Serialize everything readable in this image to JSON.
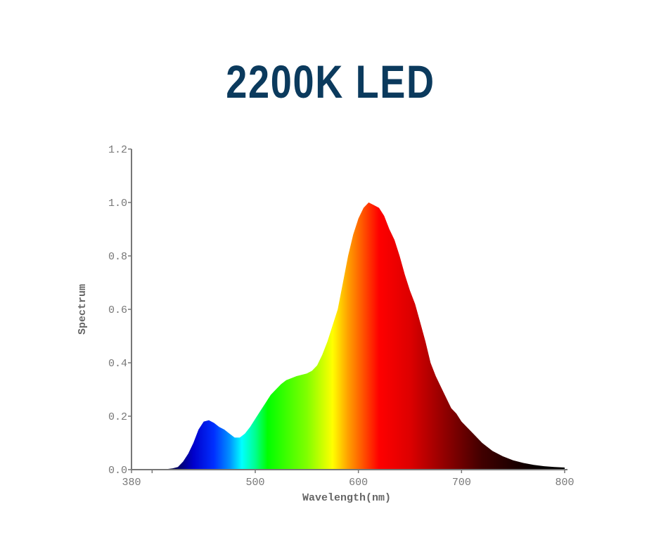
{
  "chart_data": {
    "type": "area",
    "title": "2200K LED",
    "xlabel": "Wavelength(nm)",
    "ylabel": "Spectrum",
    "xlim": [
      380,
      800
    ],
    "ylim": [
      0,
      1.2
    ],
    "x_ticks": [
      380,
      500,
      600,
      700,
      800
    ],
    "x_minor_ticks": [
      400
    ],
    "y_ticks": [
      "0.0",
      "0.2",
      "0.4",
      "0.6",
      "0.8",
      "1.0",
      "1.2"
    ],
    "grid": false,
    "fill": "visible-spectrum gradient",
    "x": [
      380,
      410,
      420,
      425,
      430,
      435,
      440,
      445,
      450,
      455,
      460,
      465,
      470,
      475,
      480,
      485,
      490,
      495,
      500,
      505,
      510,
      515,
      520,
      525,
      530,
      540,
      550,
      555,
      560,
      565,
      570,
      575,
      580,
      585,
      590,
      595,
      600,
      605,
      610,
      615,
      620,
      625,
      630,
      635,
      640,
      645,
      650,
      655,
      660,
      665,
      670,
      675,
      680,
      685,
      690,
      695,
      700,
      710,
      720,
      730,
      740,
      750,
      760,
      770,
      780,
      790,
      800
    ],
    "y": [
      0,
      0,
      0.005,
      0.01,
      0.03,
      0.06,
      0.1,
      0.15,
      0.18,
      0.185,
      0.175,
      0.16,
      0.15,
      0.135,
      0.12,
      0.12,
      0.135,
      0.16,
      0.19,
      0.22,
      0.25,
      0.28,
      0.3,
      0.32,
      0.335,
      0.35,
      0.36,
      0.37,
      0.39,
      0.43,
      0.48,
      0.54,
      0.6,
      0.7,
      0.8,
      0.88,
      0.94,
      0.98,
      1.0,
      0.99,
      0.98,
      0.95,
      0.9,
      0.86,
      0.8,
      0.73,
      0.67,
      0.62,
      0.55,
      0.48,
      0.4,
      0.35,
      0.31,
      0.27,
      0.23,
      0.21,
      0.18,
      0.14,
      0.1,
      0.07,
      0.05,
      0.035,
      0.025,
      0.018,
      0.013,
      0.01,
      0.008
    ],
    "colors": {
      "title": "#0b3a5d",
      "axis": "#777777"
    }
  }
}
